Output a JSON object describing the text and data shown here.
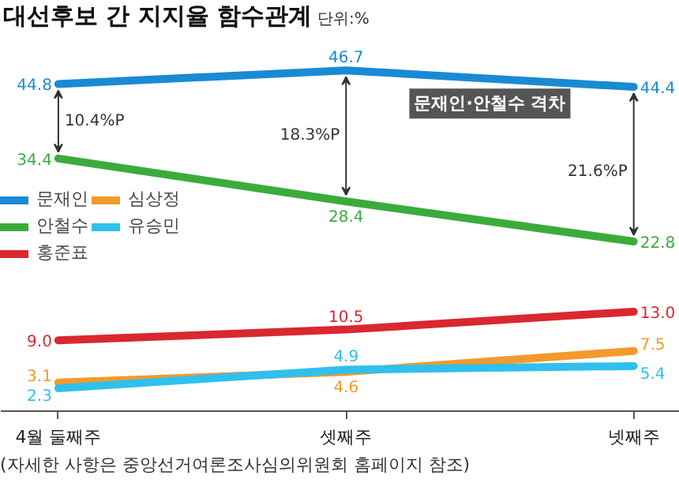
{
  "chart_data": {
    "type": "line",
    "title": "대선후보 간 지지율 함수관계",
    "subtitle": "단위:%",
    "categories": [
      "4월 둘째주",
      "셋째주",
      "넷째주"
    ],
    "series": [
      {
        "name": "문재인",
        "color": "#1a8ad4",
        "values": [
          44.8,
          46.7,
          44.4
        ],
        "value_labels": [
          "44.8",
          "46.7",
          "44.4"
        ]
      },
      {
        "name": "안철수",
        "color": "#3cab3c",
        "values": [
          34.4,
          28.4,
          22.8
        ],
        "value_labels": [
          "34.4",
          "28.4",
          "22.8"
        ]
      },
      {
        "name": "홍준표",
        "color": "#d9282f",
        "values": [
          9.0,
          10.5,
          13.0
        ],
        "value_labels": [
          "9.0",
          "10.5",
          "13.0"
        ]
      },
      {
        "name": "심상정",
        "color": "#f39a2b",
        "values": [
          3.1,
          4.6,
          7.5
        ],
        "value_labels": [
          "3.1",
          "4.6",
          "7.5"
        ]
      },
      {
        "name": "유승민",
        "color": "#2fc0ee",
        "values": [
          2.3,
          4.9,
          5.4
        ],
        "value_labels": [
          "2.3",
          "4.9",
          "5.4"
        ]
      }
    ],
    "annotations": [
      "10.4%P",
      "18.3%P",
      "21.6%P",
      "문재인·안철수 격차",
      "(자세한 사항은 중앙선거여론조사심의위원회 홈페이지 참조)"
    ],
    "legend": "left",
    "grid": false,
    "tick_labels": "x",
    "line_style": "solid"
  }
}
